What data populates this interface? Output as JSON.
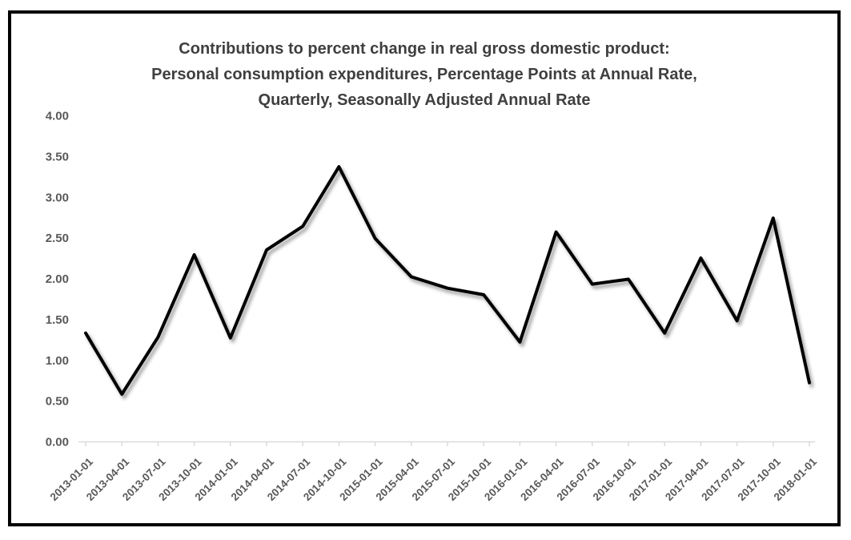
{
  "chart_data": {
    "type": "line",
    "title": "Contributions to percent change in real gross domestic product: Personal consumption expenditures, Percentage Points at Annual Rate, Quarterly, Seasonally Adjusted Annual Rate",
    "title_lines": [
      "Contributions to percent change in real gross domestic product:",
      "Personal consumption expenditures, Percentage Points at Annual Rate,",
      "Quarterly, Seasonally Adjusted Annual Rate"
    ],
    "categories": [
      "2013-01-01",
      "2013-04-01",
      "2013-07-01",
      "2013-10-01",
      "2014-01-01",
      "2014-04-01",
      "2014-07-01",
      "2014-10-01",
      "2015-01-01",
      "2015-04-01",
      "2015-07-01",
      "2015-10-01",
      "2016-01-01",
      "2016-04-01",
      "2016-07-01",
      "2016-10-01",
      "2017-01-01",
      "2017-04-01",
      "2017-07-01",
      "2017-10-01",
      "2018-01-01"
    ],
    "values": [
      1.33,
      0.58,
      1.28,
      2.29,
      1.27,
      2.35,
      2.64,
      3.37,
      2.49,
      2.02,
      1.88,
      1.8,
      1.22,
      2.57,
      1.93,
      1.99,
      1.33,
      2.25,
      1.48,
      2.74,
      0.72
    ],
    "xlabel": "",
    "ylabel": "",
    "ylim": [
      0.0,
      4.0
    ],
    "ytick_step": 0.5,
    "ytick_labels": [
      "0.00",
      "0.50",
      "1.00",
      "1.50",
      "2.00",
      "2.50",
      "3.00",
      "3.50",
      "4.00"
    ],
    "grid": false,
    "legend": "none",
    "line_color": "#000000",
    "axis_line_color": "#d9d9d9",
    "tick_label_color": "#595959",
    "title_color": "#3f3f3f",
    "background_color": "#ffffff",
    "frame_border_color": "#000000"
  }
}
